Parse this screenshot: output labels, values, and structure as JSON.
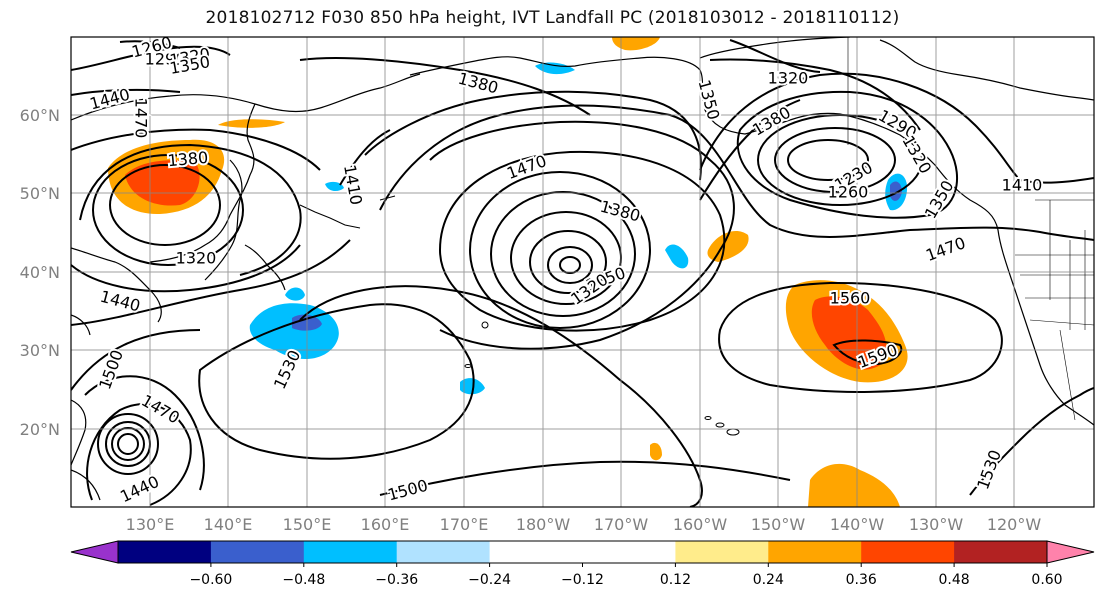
{
  "title": "2018102712 F030 850 hPa height, IVT Landfall PC (2018103012 - 2018110112)",
  "lat_labels": [
    "60°N",
    "50°N",
    "40°N",
    "30°N",
    "20°N"
  ],
  "lon_labels": [
    "130°E",
    "140°E",
    "150°E",
    "160°E",
    "170°E",
    "180°W",
    "170°W",
    "160°W",
    "150°W",
    "140°W",
    "130°W",
    "120°W"
  ],
  "contour_labels": [
    {
      "t": "1260"
    },
    {
      "t": "1290"
    },
    {
      "t": "1320"
    },
    {
      "t": "1350"
    },
    {
      "t": "1380"
    },
    {
      "t": "1380"
    },
    {
      "t": "1440"
    },
    {
      "t": "1470"
    },
    {
      "t": "1380"
    },
    {
      "t": "1350"
    },
    {
      "t": "1320"
    },
    {
      "t": "1410"
    },
    {
      "t": "1470"
    },
    {
      "t": "1380"
    },
    {
      "t": "1320"
    },
    {
      "t": "1350"
    },
    {
      "t": "1440"
    },
    {
      "t": "1320"
    },
    {
      "t": "1290"
    },
    {
      "t": "1320"
    },
    {
      "t": "1230"
    },
    {
      "t": "1260"
    },
    {
      "t": "1350"
    },
    {
      "t": "1410"
    },
    {
      "t": "1470"
    },
    {
      "t": "1560"
    },
    {
      "t": "1590"
    },
    {
      "t": "1530"
    },
    {
      "t": "1500"
    },
    {
      "t": "1470"
    },
    {
      "t": "1440"
    },
    {
      "t": "1500"
    },
    {
      "t": "1530"
    }
  ],
  "colorbar": {
    "colors": [
      "#9932cc",
      "#000080",
      "#3a5fcd",
      "#00bfff",
      "#b0e2ff",
      "#ffffff",
      "#ffffff",
      "#ffec8b",
      "#ffa500",
      "#ff4500",
      "#b22222",
      "#ff82ab"
    ],
    "ticks": [
      "−0.60",
      "−0.48",
      "−0.36",
      "−0.24",
      "−0.12",
      "0.12",
      "0.24",
      "0.36",
      "0.48",
      "0.60"
    ]
  }
}
